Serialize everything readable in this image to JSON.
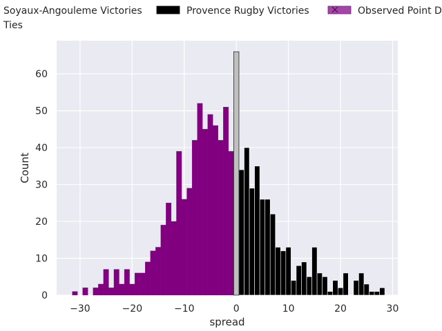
{
  "chart_data": {
    "type": "bar",
    "xlabel": "spread",
    "ylabel": "Count",
    "xlim": [
      -34.5,
      31
    ],
    "ylim": [
      0,
      69
    ],
    "x_ticks": [
      -30,
      -20,
      -10,
      0,
      10,
      20,
      30
    ],
    "x_tick_labels": [
      "−30",
      "−20",
      "−10",
      "0",
      "10",
      "20",
      "30"
    ],
    "y_ticks": [
      0,
      10,
      20,
      30,
      40,
      50,
      60
    ],
    "y_tick_labels": [
      "0",
      "10",
      "20",
      "30",
      "40",
      "50",
      "60"
    ],
    "grid": true,
    "legend_position": "top",
    "series": [
      {
        "name": "Soyaux-Angouleme Victories",
        "color": "#800080",
        "x": [
          -31,
          -30,
          -29,
          -28,
          -27,
          -26,
          -25,
          -24,
          -23,
          -22,
          -21,
          -20,
          -19,
          -18,
          -17,
          -16,
          -15,
          -14,
          -13,
          -12,
          -11,
          -10,
          -9,
          -8,
          -7,
          -6,
          -5,
          -4,
          -3,
          -2,
          -1
        ],
        "values": [
          1,
          0,
          2,
          0,
          2,
          3,
          7,
          2,
          7,
          3,
          7,
          3,
          6,
          6,
          9,
          12,
          13,
          19,
          25,
          20,
          39,
          26,
          29,
          42,
          52,
          45,
          49,
          46,
          42,
          51,
          39
        ]
      },
      {
        "name": "Provence Rugby Victories",
        "color": "#000000",
        "x": [
          1,
          2,
          3,
          4,
          5,
          6,
          7,
          8,
          9,
          10,
          11,
          12,
          13,
          14,
          15,
          16,
          17,
          18,
          19,
          20,
          21,
          22,
          23,
          24,
          25,
          26,
          27,
          28
        ],
        "values": [
          34,
          40,
          29,
          35,
          26,
          26,
          22,
          13,
          12,
          13,
          4,
          8,
          9,
          5,
          13,
          6,
          5,
          1,
          4,
          2,
          6,
          0,
          4,
          6,
          3,
          1,
          1,
          2
        ]
      },
      {
        "name": "Ties",
        "color": "#c0c0c0",
        "x": [
          0
        ],
        "values": [
          66
        ]
      }
    ],
    "legend_entries": [
      {
        "label": "Soyaux-Angouleme Victories",
        "color": "#800080"
      },
      {
        "label": "Provence Rugby Victories",
        "color": "#000000"
      },
      {
        "label": "Observed Point D",
        "color": "#9b30a0"
      },
      {
        "label": "Ties",
        "color": "#c0c0c0"
      }
    ]
  }
}
